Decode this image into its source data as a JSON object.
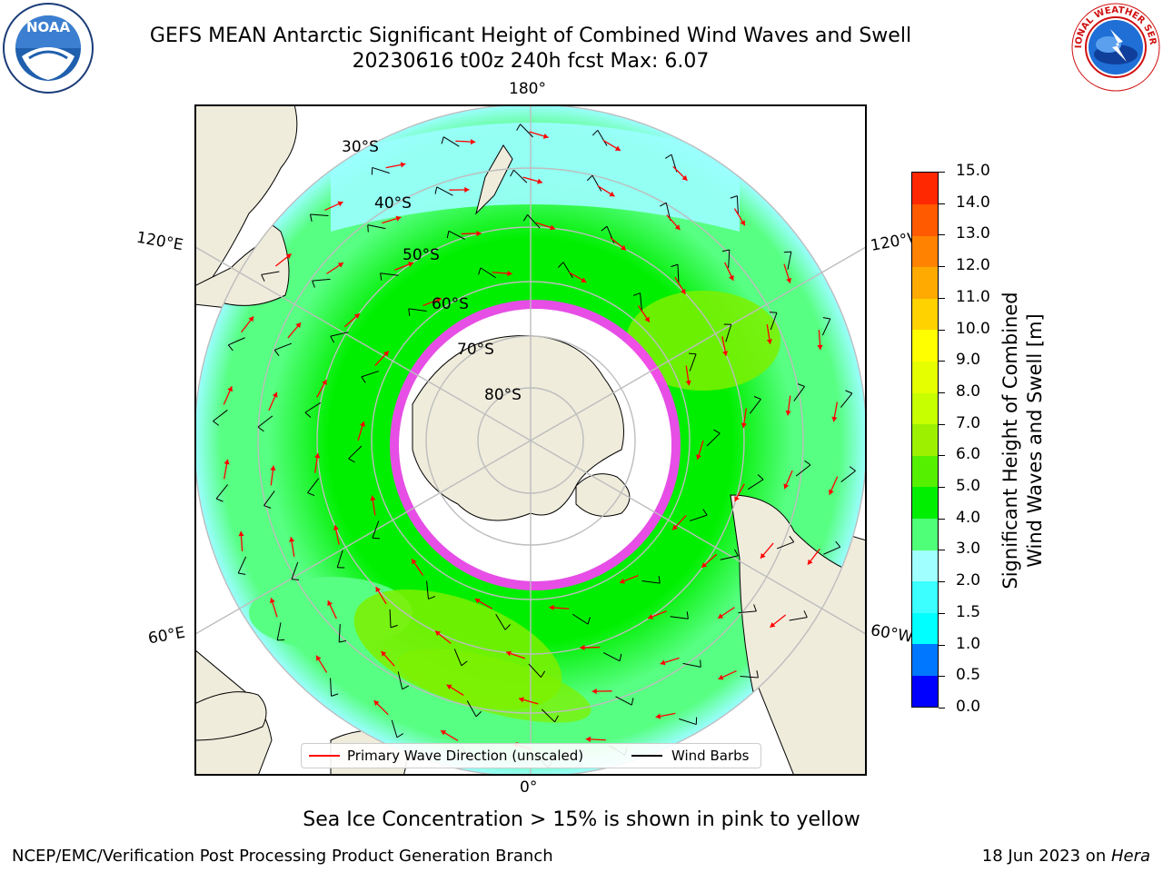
{
  "header": {
    "title_line1": "GEFS MEAN Antarctic Significant Height of Combined Wind Waves and Swell",
    "title_line2": "20230616 t00z 240h fcst   Max: 6.07"
  },
  "logos": {
    "noaa": {
      "text": "NOAA",
      "ring_text": "NATIONAL OCEANIC AND ATMOSPHERIC ADMINISTRATION • U.S. DEPARTMENT OF COMMERCE"
    },
    "nws": {
      "ring_text": "NATIONAL WEATHER SERVICE"
    }
  },
  "map": {
    "projection": "south-polar-stereographic",
    "longitude_labels": {
      "top": "180°",
      "upper_left": "120°E",
      "upper_right": "120°W",
      "lower_left": "60°E",
      "lower_right": "60°W",
      "bottom": "0°"
    },
    "latitude_labels": [
      "30°S",
      "40°S",
      "50°S",
      "60°S",
      "70°S",
      "80°S"
    ],
    "colors": {
      "land": "#efecdc",
      "ocean_low": "#9bffff",
      "ocean_mid": "#57ff82",
      "ocean_high": "#00ef00",
      "ocean_peak": "#7df000",
      "ice_edge": "#ff3cff",
      "ice_interior": "#ffffff",
      "grid": "#bdbdbd",
      "wave_arrow": "#ff0000",
      "wind_barb": "#000000"
    }
  },
  "colorbar": {
    "label_line1": "Significant Height of Combined",
    "label_line2": "Wind Waves and Swell [m]",
    "ticks": [
      "0.0",
      "0.5",
      "1.0",
      "1.5",
      "2.0",
      "3.0",
      "4.0",
      "5.0",
      "6.0",
      "7.0",
      "8.0",
      "9.0",
      "10.0",
      "11.0",
      "12.0",
      "13.0",
      "14.0",
      "15.0"
    ],
    "colors": [
      "#0000ff",
      "#0077ff",
      "#00ffff",
      "#3cffff",
      "#a0ffff",
      "#50ff78",
      "#00ef00",
      "#55f000",
      "#9cf000",
      "#c8ff00",
      "#e6ff00",
      "#ffff00",
      "#ffd200",
      "#ffaa00",
      "#ff8200",
      "#ff5a00",
      "#ff2800"
    ]
  },
  "legend": {
    "wave_label": "Primary Wave Direction (unscaled)",
    "wind_label": "Wind Barbs"
  },
  "ice_note": "Sea Ice Concentration > 15% is shown in pink to yellow",
  "footer": {
    "left": "NCEP/EMC/Verification Post Processing Product Generation Branch",
    "right_prefix": "18 Jun 2023 on ",
    "right_host": "Hera"
  }
}
